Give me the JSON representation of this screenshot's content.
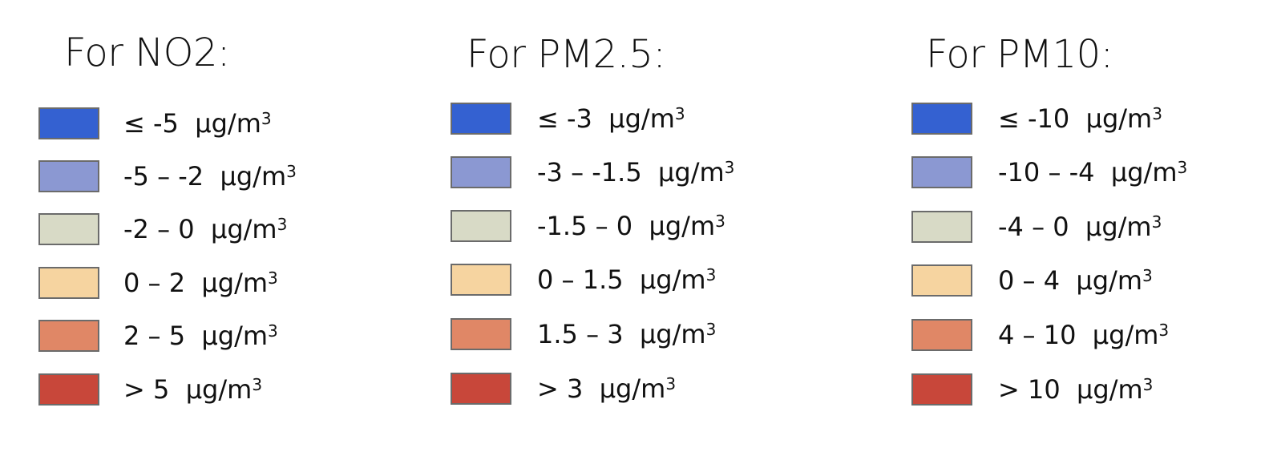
{
  "legends": [
    {
      "title": "For NO2:",
      "items": [
        {
          "range": "≤ -5",
          "unit": "μg/m",
          "exp": "3",
          "color": "#3461d1"
        },
        {
          "range": "-5 – -2",
          "unit": "μg/m",
          "exp": "3",
          "color": "#8b98d2"
        },
        {
          "range": "-2 – 0",
          "unit": "μg/m",
          "exp": "3",
          "color": "#d8dac6"
        },
        {
          "range": "0 – 2",
          "unit": "μg/m",
          "exp": "3",
          "color": "#f6d4a0"
        },
        {
          "range": "2 – 5",
          "unit": "μg/m",
          "exp": "3",
          "color": "#e08766"
        },
        {
          "range": "> 5",
          "unit": "μg/m",
          "exp": "3",
          "color": "#c8473a"
        }
      ]
    },
    {
      "title": "For PM2.5:",
      "items": [
        {
          "range": "≤ -3",
          "unit": "μg/m",
          "exp": "3",
          "color": "#3461d1"
        },
        {
          "range": "-3 – -1.5",
          "unit": "μg/m",
          "exp": "3",
          "color": "#8b98d2"
        },
        {
          "range": "-1.5 – 0",
          "unit": "μg/m",
          "exp": "3",
          "color": "#d8dac6"
        },
        {
          "range": "0 – 1.5",
          "unit": "μg/m",
          "exp": "3",
          "color": "#f6d4a0"
        },
        {
          "range": "1.5 – 3",
          "unit": "μg/m",
          "exp": "3",
          "color": "#e08766"
        },
        {
          "range": "> 3",
          "unit": "μg/m",
          "exp": "3",
          "color": "#c8473a"
        }
      ]
    },
    {
      "title": "For PM10:",
      "items": [
        {
          "range": "≤ -10",
          "unit": "μg/m",
          "exp": "3",
          "color": "#3461d1"
        },
        {
          "range": "-10 – -4",
          "unit": "μg/m",
          "exp": "3",
          "color": "#8b98d2"
        },
        {
          "range": "-4 – 0",
          "unit": "μg/m",
          "exp": "3",
          "color": "#d8dac6"
        },
        {
          "range": "0 – 4",
          "unit": "μg/m",
          "exp": "3",
          "color": "#f6d4a0"
        },
        {
          "range": "4 – 10",
          "unit": "μg/m",
          "exp": "3",
          "color": "#e08766"
        },
        {
          "range": "> 10",
          "unit": "μg/m",
          "exp": "3",
          "color": "#c8473a"
        }
      ]
    }
  ]
}
